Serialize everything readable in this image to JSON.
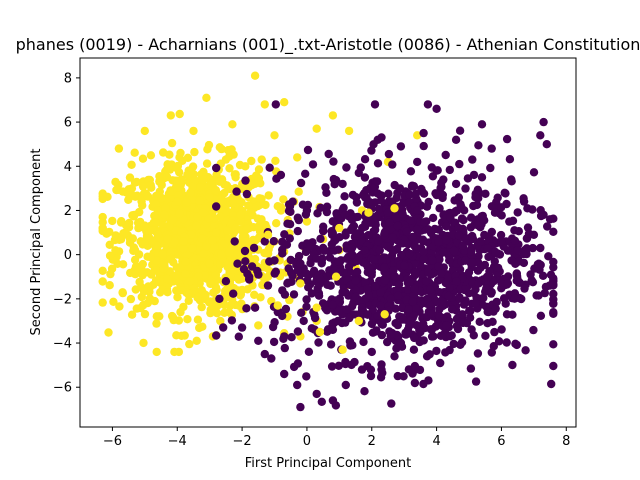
{
  "chart_data": {
    "type": "scatter",
    "title": "phanes (0019) - Acharnians (001)_.txt-Aristotle (0086) - Athenian Constitution",
    "xlabel": "First Principal Component",
    "ylabel": "Second Principal Component",
    "xlim": [
      -7,
      8.3
    ],
    "ylim": [
      -7.8,
      8.9
    ],
    "xticks": [
      -6,
      -4,
      -2,
      0,
      2,
      4,
      6,
      8
    ],
    "yticks": [
      -6,
      -4,
      -2,
      0,
      2,
      4,
      6,
      8
    ],
    "grid": false,
    "legend": "none",
    "series": [
      {
        "color": "#440154",
        "count": 1300,
        "cluster": {
          "center": [
            3.0,
            -0.5
          ],
          "spread": [
            2.0,
            2.1
          ],
          "xrange": [
            -2.8,
            7.6
          ],
          "yrange": [
            -7.1,
            6.8
          ]
        },
        "values": [
          [
            -2.0,
            -3.3
          ],
          [
            -1.5,
            -3.9
          ],
          [
            -1.1,
            -4.7
          ],
          [
            -0.7,
            -5.4
          ],
          [
            -0.3,
            -5.9
          ],
          [
            -0.2,
            -6.9
          ],
          [
            0.3,
            -6.3
          ],
          [
            0.8,
            -6.6
          ],
          [
            1.2,
            -5.9
          ],
          [
            1.7,
            -5.2
          ],
          [
            2.3,
            -5.2
          ],
          [
            2.7,
            -4.6
          ],
          [
            3.3,
            -4.3
          ],
          [
            3.9,
            -3.7
          ],
          [
            4.3,
            -3.2
          ],
          [
            4.8,
            -2.7
          ],
          [
            5.2,
            -2.2
          ],
          [
            5.7,
            -1.7
          ],
          [
            6.2,
            -1.3
          ],
          [
            6.6,
            -2.0
          ],
          [
            6.9,
            -0.9
          ],
          [
            7.2,
            0.3
          ],
          [
            7.0,
            0.9
          ],
          [
            7.3,
            1.8
          ],
          [
            6.7,
            2.4
          ],
          [
            7.5,
            1.6
          ],
          [
            7.4,
            5.0
          ],
          [
            7.2,
            5.4
          ],
          [
            7.3,
            6.0
          ],
          [
            6.3,
            3.4
          ],
          [
            5.7,
            4.8
          ],
          [
            5.4,
            5.9
          ],
          [
            5.1,
            4.3
          ],
          [
            4.6,
            5.2
          ],
          [
            4.0,
            6.6
          ],
          [
            3.6,
            5.5
          ],
          [
            3.4,
            4.2
          ],
          [
            2.9,
            4.9
          ],
          [
            2.3,
            5.3
          ],
          [
            2.1,
            6.8
          ],
          [
            1.6,
            3.7
          ],
          [
            1.1,
            3.2
          ],
          [
            0.6,
            2.8
          ],
          [
            0.0,
            2.0
          ],
          [
            -0.6,
            1.4
          ],
          [
            -1.3,
            0.6
          ],
          [
            -1.9,
            -0.3
          ],
          [
            -2.5,
            -1.2
          ],
          [
            -2.7,
            -2.0
          ],
          [
            -1.6,
            -2.4
          ],
          [
            -1.2,
            -1.4
          ],
          [
            -0.4,
            -1.8
          ],
          [
            0.2,
            -2.6
          ],
          [
            0.8,
            -3.4
          ],
          [
            1.4,
            -4.1
          ],
          [
            2.0,
            -4.4
          ],
          [
            2.6,
            -3.6
          ],
          [
            3.2,
            -3.0
          ],
          [
            3.8,
            -2.3
          ],
          [
            4.4,
            -1.5
          ],
          [
            5.0,
            -0.8
          ],
          [
            5.6,
            -0.1
          ],
          [
            6.0,
            0.6
          ],
          [
            6.4,
            1.1
          ],
          [
            5.8,
            1.9
          ],
          [
            5.2,
            2.6
          ],
          [
            4.6,
            3.2
          ],
          [
            4.0,
            2.7
          ],
          [
            3.4,
            2.0
          ],
          [
            2.8,
            1.3
          ],
          [
            2.2,
            0.6
          ],
          [
            1.6,
            -0.1
          ],
          [
            1.0,
            -0.8
          ],
          [
            0.4,
            -1.1
          ],
          [
            -0.2,
            -0.4
          ],
          [
            0.5,
            0.3
          ],
          [
            1.2,
            1.0
          ],
          [
            1.9,
            1.7
          ],
          [
            2.6,
            2.4
          ],
          [
            3.3,
            3.1
          ],
          [
            4.0,
            3.8
          ],
          [
            4.7,
            4.1
          ],
          [
            5.4,
            3.5
          ],
          [
            6.1,
            2.8
          ],
          [
            6.8,
            2.1
          ],
          [
            6.5,
            0.2
          ],
          [
            5.9,
            -0.6
          ],
          [
            5.3,
            -1.3
          ],
          [
            4.7,
            -2.0
          ],
          [
            4.1,
            -2.8
          ],
          [
            3.5,
            -3.5
          ],
          [
            2.9,
            -4.0
          ],
          [
            2.3,
            -3.1
          ],
          [
            1.7,
            -2.4
          ],
          [
            1.1,
            -1.7
          ],
          [
            0.5,
            -2.2
          ],
          [
            -0.1,
            -3.0
          ],
          [
            -0.7,
            -3.7
          ],
          [
            -1.3,
            -4.5
          ],
          [
            -0.9,
            -2.6
          ],
          [
            3.0,
            -0.5
          ],
          [
            3.6,
            -0.2
          ],
          [
            4.2,
            0.1
          ],
          [
            4.8,
            0.4
          ]
        ]
      },
      {
        "color": "#fde725",
        "count": 1100,
        "cluster": {
          "center": [
            -3.4,
            0.8
          ],
          "spread": [
            1.2,
            1.7
          ],
          "xrange": [
            -6.3,
            3.4
          ],
          "yrange": [
            -4.4,
            8.1
          ]
        },
        "values": [
          [
            -6.3,
            1.7
          ],
          [
            -5.8,
            4.8
          ],
          [
            -5.4,
            3.0
          ],
          [
            -5.0,
            5.6
          ],
          [
            -4.6,
            2.0
          ],
          [
            -4.2,
            6.3
          ],
          [
            -3.9,
            4.6
          ],
          [
            -3.5,
            5.6
          ],
          [
            -3.1,
            7.1
          ],
          [
            -2.7,
            3.3
          ],
          [
            -2.3,
            5.9
          ],
          [
            -1.9,
            4.0
          ],
          [
            -1.6,
            8.1
          ],
          [
            -1.3,
            6.8
          ],
          [
            -1.0,
            5.4
          ],
          [
            -0.7,
            6.9
          ],
          [
            -0.3,
            4.4
          ],
          [
            0.3,
            5.7
          ],
          [
            0.8,
            6.3
          ],
          [
            1.3,
            5.6
          ],
          [
            -0.4,
            2.4
          ],
          [
            0.0,
            1.5
          ],
          [
            0.5,
            0.7
          ],
          [
            1.0,
            0.2
          ],
          [
            1.5,
            -0.6
          ],
          [
            2.2,
            -0.1
          ],
          [
            2.8,
            0.9
          ],
          [
            3.2,
            2.1
          ],
          [
            3.4,
            5.4
          ],
          [
            2.5,
            4.2
          ],
          [
            2.0,
            3.0
          ],
          [
            1.7,
            2.0
          ],
          [
            1.2,
            -1.4
          ],
          [
            0.8,
            -2.3
          ],
          [
            0.3,
            -3.0
          ],
          [
            -0.2,
            -3.7
          ],
          [
            -0.6,
            -2.8
          ],
          [
            -1.1,
            -2.1
          ],
          [
            -1.5,
            -3.2
          ],
          [
            -2.0,
            -1.6
          ],
          [
            -2.4,
            -2.6
          ],
          [
            -2.9,
            -3.7
          ],
          [
            -3.4,
            -3.9
          ],
          [
            -3.9,
            -2.6
          ],
          [
            -4.3,
            -1.7
          ],
          [
            -4.8,
            -0.9
          ],
          [
            -5.3,
            0.2
          ],
          [
            -5.6,
            1.0
          ],
          [
            -5.1,
            2.4
          ],
          [
            -4.5,
            3.3
          ],
          [
            -4.0,
            3.9
          ],
          [
            -3.6,
            2.8
          ],
          [
            -3.2,
            1.9
          ],
          [
            -2.8,
            1.0
          ],
          [
            -2.4,
            0.1
          ],
          [
            -2.0,
            -0.7
          ],
          [
            -3.8,
            0.6
          ],
          [
            -4.2,
            -0.2
          ],
          [
            -4.6,
            0.9
          ],
          [
            -3.0,
            -0.4
          ],
          [
            -2.6,
            2.4
          ],
          [
            -2.2,
            3.5
          ],
          [
            -1.8,
            2.6
          ],
          [
            -1.4,
            1.6
          ],
          [
            -1.0,
            0.6
          ],
          [
            -0.6,
            -0.4
          ],
          [
            -1.2,
            -1.0
          ],
          [
            -3.4,
            1.3
          ],
          [
            -3.0,
            2.6
          ],
          [
            -4.4,
            1.8
          ],
          [
            -5.0,
            1.3
          ],
          [
            -3.6,
            -1.2
          ],
          [
            -2.8,
            -2.0
          ],
          [
            -1.6,
            -0.2
          ],
          [
            -2.2,
            1.2
          ],
          [
            -4.0,
            2.4
          ],
          [
            -3.2,
            3.4
          ],
          [
            -2.5,
            4.3
          ],
          [
            -1.5,
            3.4
          ],
          [
            -0.8,
            2.0
          ]
        ]
      }
    ]
  }
}
